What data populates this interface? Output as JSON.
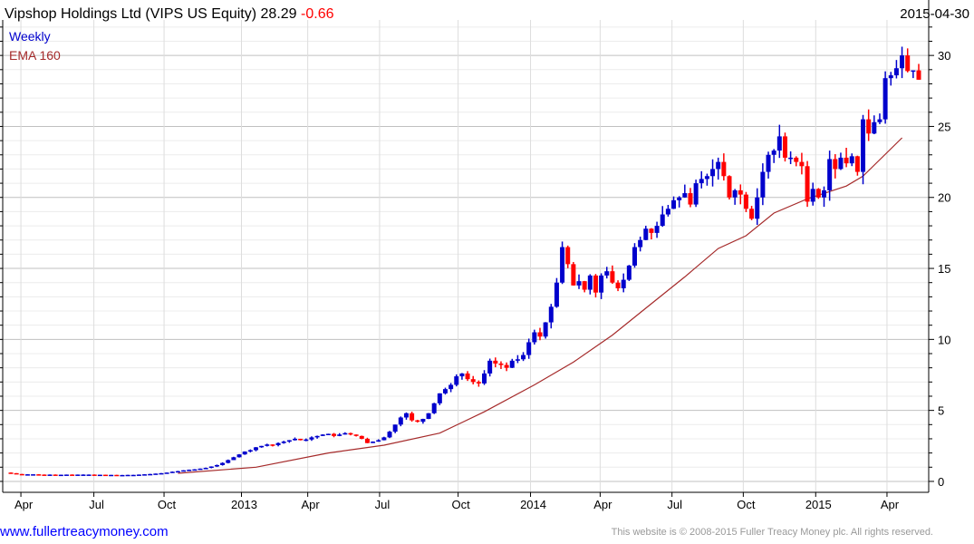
{
  "header": {
    "title": "Vipshop Holdings Ltd (VIPS US Equity)",
    "last": "28.29",
    "change": "-0.66",
    "date": "2015-04-30"
  },
  "legend": {
    "period": "Weekly",
    "indicator": "EMA 160"
  },
  "footer": {
    "site": "www.fullertreacymoney.com",
    "copyright": "This website is © 2008-2015 Fuller Treacy Money plc. All rights reserved."
  },
  "colors": {
    "up": "#0000cc",
    "down": "#ff0000",
    "ema": "#a52a2a",
    "change": "#ff0000",
    "link": "#0000ff"
  },
  "chart_data": {
    "type": "candlestick",
    "title": "Vipshop Holdings Ltd (VIPS US Equity)",
    "frequency": "weekly",
    "ylim": [
      -0.77,
      32.5
    ],
    "yticks": [
      0,
      5,
      10,
      15,
      20,
      25,
      30
    ],
    "grid": true,
    "xticks": [
      {
        "label": "Apr",
        "week": 1.8
      },
      {
        "label": "Jul",
        "week": 14.9
      },
      {
        "label": "Oct",
        "week": 27.5
      },
      {
        "label": "2013",
        "week": 41.4
      },
      {
        "label": "Apr",
        "week": 53.3
      },
      {
        "label": "Jul",
        "week": 66.2
      },
      {
        "label": "Oct",
        "week": 80.3
      },
      {
        "label": "2014",
        "week": 93.3
      },
      {
        "label": "Apr",
        "week": 105.8
      },
      {
        "label": "Jul",
        "week": 118.7
      },
      {
        "label": "Oct",
        "week": 131.5
      },
      {
        "label": "2015",
        "week": 144.5
      },
      {
        "label": "Apr",
        "week": 157.3
      }
    ],
    "close": [
      0.58,
      0.52,
      0.45,
      0.5,
      0.5,
      0.48,
      0.47,
      0.48,
      0.47,
      0.47,
      0.48,
      0.47,
      0.48,
      0.48,
      0.48,
      0.47,
      0.47,
      0.46,
      0.46,
      0.45,
      0.45,
      0.46,
      0.46,
      0.48,
      0.5,
      0.52,
      0.55,
      0.58,
      0.62,
      0.68,
      0.72,
      0.78,
      0.82,
      0.85,
      0.9,
      0.95,
      1.05,
      1.15,
      1.3,
      1.5,
      1.7,
      1.9,
      2.1,
      2.2,
      2.4,
      2.5,
      2.6,
      2.55,
      2.7,
      2.8,
      2.9,
      3.0,
      2.9,
      2.95,
      3.1,
      3.2,
      3.3,
      3.35,
      3.2,
      3.3,
      3.4,
      3.3,
      3.2,
      3.0,
      2.7,
      2.8,
      2.9,
      3.1,
      3.5,
      4.0,
      4.5,
      4.8,
      4.3,
      4.2,
      4.4,
      4.8,
      5.5,
      6.2,
      6.5,
      6.8,
      7.4,
      7.6,
      7.2,
      7.0,
      6.9,
      7.6,
      8.5,
      8.3,
      8.2,
      8.0,
      8.5,
      8.6,
      8.9,
      9.8,
      10.5,
      10.2,
      11.2,
      12.3,
      14.0,
      16.5,
      15.3,
      13.8,
      14.1,
      13.5,
      14.5,
      13.3,
      14.5,
      14.8,
      14.0,
      13.6,
      14.2,
      15.2,
      16.5,
      17.0,
      17.8,
      17.5,
      18.0,
      18.8,
      19.2,
      19.8,
      20.0,
      20.3,
      19.5,
      21.0,
      21.3,
      21.5,
      22.0,
      22.5,
      21.5,
      20.0,
      20.5,
      20.2,
      19.2,
      18.5,
      20.0,
      21.8,
      23.0,
      23.3,
      24.3,
      22.8,
      22.8,
      22.5,
      22.2,
      19.7,
      20.6,
      20.0,
      20.5,
      22.7,
      22.0,
      22.8,
      22.4,
      22.9,
      21.8,
      25.5,
      24.5,
      25.3,
      25.5,
      28.4,
      28.6,
      29.1,
      30.0,
      28.9,
      28.95,
      28.29
    ],
    "ema_160": [
      [
        30,
        0.57
      ],
      [
        44,
        1.0
      ],
      [
        57,
        2.0
      ],
      [
        67,
        2.55
      ],
      [
        77,
        3.4
      ],
      [
        85,
        4.9
      ],
      [
        94,
        6.8
      ],
      [
        101,
        8.4
      ],
      [
        108,
        10.3
      ],
      [
        114,
        12.2
      ],
      [
        121,
        14.4
      ],
      [
        127,
        16.4
      ],
      [
        132,
        17.3
      ],
      [
        137,
        18.9
      ],
      [
        143,
        19.9
      ],
      [
        150,
        20.8
      ],
      [
        153,
        21.5
      ],
      [
        160,
        24.2
      ]
    ]
  }
}
